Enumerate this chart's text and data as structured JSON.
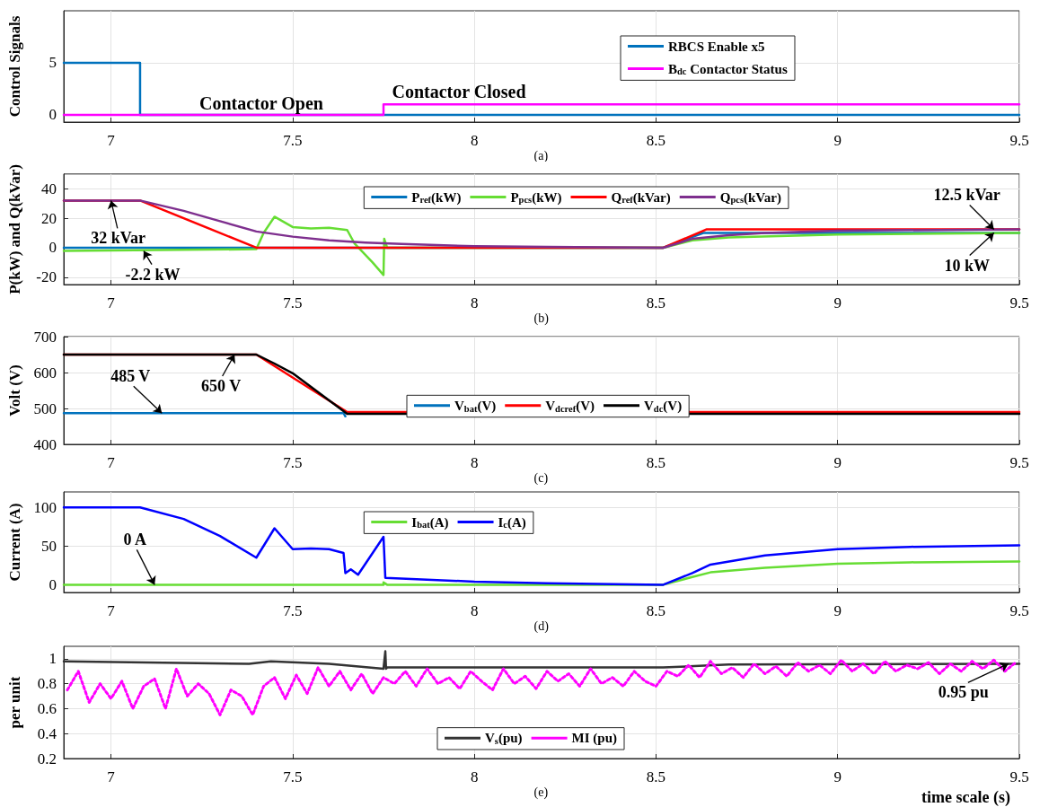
{
  "chart_data": [
    {
      "type": "line",
      "ylabel": "Control Signals",
      "xlim": [
        6.87,
        9.5
      ],
      "xticks": [
        7,
        7.5,
        8,
        8.5,
        9,
        9.5
      ],
      "ylim": [
        -0.7,
        10
      ],
      "yticks": [
        0,
        5
      ],
      "grid": true,
      "legend": "top right",
      "annotations": [
        "Contactor Open",
        "Contactor Closed",
        "(a)"
      ],
      "series": [
        {
          "name": "RBCS Enable x5",
          "color": "#0072bd",
          "x": [
            6.87,
            7.08,
            7.08,
            9.5
          ],
          "values": [
            5,
            5,
            0,
            0
          ]
        },
        {
          "name": "B$_{dc}$ Contactor Status",
          "color": "#ff00ff",
          "x": [
            6.87,
            7.75,
            7.75,
            9.5
          ],
          "values": [
            0,
            0,
            1,
            1
          ]
        }
      ]
    },
    {
      "type": "line",
      "ylabel": "P(kW) and Q(kVar)",
      "xlim": [
        6.87,
        9.5
      ],
      "xticks": [
        7,
        7.5,
        8,
        8.5,
        9,
        9.5
      ],
      "ylim": [
        -25,
        50
      ],
      "yticks": [
        -20,
        0,
        20,
        40
      ],
      "grid": true,
      "legend": "top",
      "annotations": [
        {
          "text": "32 kVar",
          "x": 7.0,
          "y": 32
        },
        {
          "text": "-2.2 kW",
          "x": 7.09,
          "y": -2.2
        },
        {
          "text": "12.5 kVar",
          "x": 9.43,
          "y": 12.5
        },
        {
          "text": "10 kW",
          "x": 9.43,
          "y": 10
        },
        "(b)"
      ],
      "series": [
        {
          "name": "P$_{ref}$(kW)",
          "color": "#0072bd",
          "x": [
            6.87,
            8.52,
            8.63,
            9.5
          ],
          "values": [
            0,
            0,
            10,
            10
          ]
        },
        {
          "name": "P$_{pcs}$(kW)",
          "color": "#66dd33",
          "x": [
            6.87,
            7.4,
            7.42,
            7.45,
            7.5,
            7.55,
            7.6,
            7.65,
            7.67,
            7.72,
            7.75,
            7.752,
            7.76,
            8.0,
            8.52,
            8.6,
            8.7,
            9.0,
            9.5
          ],
          "values": [
            -2.2,
            -1,
            10,
            21,
            14,
            13,
            13.5,
            12,
            3,
            -10,
            -18.5,
            6,
            0,
            0,
            0,
            5,
            7,
            9,
            10
          ]
        },
        {
          "name": "Q$_{ref}$(kVar)",
          "color": "#ff0000",
          "x": [
            6.87,
            7.08,
            7.4,
            8.52,
            8.64,
            9.5
          ],
          "values": [
            32,
            32,
            0,
            0,
            12.5,
            12.5
          ]
        },
        {
          "name": "Q$_{pcs}$(kVar)",
          "color": "#7e2f8e",
          "x": [
            6.87,
            7.08,
            7.2,
            7.3,
            7.4,
            7.5,
            7.6,
            7.7,
            7.8,
            8.0,
            8.2,
            8.52,
            8.6,
            8.7,
            8.8,
            9.0,
            9.5
          ],
          "values": [
            32,
            32,
            25,
            18,
            11,
            7.5,
            5,
            3.5,
            2.5,
            1,
            0.5,
            0,
            6,
            8.5,
            10,
            11.5,
            12.5
          ]
        }
      ]
    },
    {
      "type": "line",
      "ylabel": "Volt (V)",
      "xlim": [
        6.87,
        9.5
      ],
      "xticks": [
        7,
        7.5,
        8,
        8.5,
        9,
        9.5
      ],
      "ylim": [
        400,
        700
      ],
      "yticks": [
        400,
        500,
        600,
        700
      ],
      "grid": true,
      "legend": "center",
      "annotations": [
        {
          "text": "485 V",
          "x": 7.14,
          "y": 487
        },
        {
          "text": "650 V",
          "x": 7.34,
          "y": 650
        },
        "(c)"
      ],
      "series": [
        {
          "name": "V$_{bat}$(V)",
          "color": "#0072bd",
          "x": [
            6.87,
            7.64,
            7.645
          ],
          "values": [
            487,
            487,
            478
          ]
        },
        {
          "name": "V$_{dcref}$(V)",
          "color": "#ff0000",
          "x": [
            6.87,
            7.4,
            7.65,
            9.5
          ],
          "values": [
            650,
            650,
            490,
            490
          ]
        },
        {
          "name": "V$_{dc}$(V)",
          "color": "#000000",
          "x": [
            6.87,
            7.4,
            7.45,
            7.5,
            7.65,
            9.5
          ],
          "values": [
            650,
            650,
            625,
            598,
            485,
            485
          ]
        }
      ]
    },
    {
      "type": "line",
      "ylabel": "Current (A)",
      "xlim": [
        6.87,
        9.5
      ],
      "xticks": [
        7,
        7.5,
        8,
        8.5,
        9,
        9.5
      ],
      "ylim": [
        -10,
        120
      ],
      "yticks": [
        0,
        50,
        100
      ],
      "grid": true,
      "legend": "top",
      "annotations": [
        {
          "text": "0 A",
          "x": 7.12,
          "y": 0
        },
        "(d)"
      ],
      "series": [
        {
          "name": "I$_{bat}$(A)",
          "color": "#66dd33",
          "x": [
            6.87,
            7.75,
            7.75,
            7.76,
            8.0,
            8.52,
            8.6,
            8.65,
            8.8,
            9.0,
            9.2,
            9.5
          ],
          "values": [
            0,
            0,
            3,
            0,
            0,
            0,
            10,
            16,
            22,
            27,
            29,
            30
          ]
        },
        {
          "name": "I$_{c}$(A)",
          "color": "#0000ff",
          "x": [
            6.87,
            7.08,
            7.2,
            7.3,
            7.4,
            7.45,
            7.5,
            7.55,
            7.6,
            7.64,
            7.645,
            7.66,
            7.68,
            7.75,
            7.755,
            8.0,
            8.2,
            8.52,
            8.6,
            8.65,
            8.8,
            9.0,
            9.2,
            9.5
          ],
          "values": [
            100,
            100,
            85,
            63,
            35,
            73,
            46,
            47,
            46,
            41,
            15,
            20,
            13,
            62,
            9,
            4,
            2,
            0,
            15,
            26,
            38,
            46,
            49,
            51
          ]
        }
      ]
    },
    {
      "type": "line",
      "ylabel": "per unit",
      "xlabel": "time scale (s)",
      "xlim": [
        6.87,
        9.5
      ],
      "xticks": [
        7,
        7.5,
        8,
        8.5,
        9,
        9.5
      ],
      "ylim": [
        0.2,
        1.1
      ],
      "yticks": [
        0.2,
        0.4,
        0.6,
        0.8,
        1
      ],
      "grid": true,
      "legend": "bottom",
      "annotations": [
        {
          "text": "0.95 pu",
          "x": 9.47,
          "y": 0.96
        },
        "(e)"
      ],
      "series": [
        {
          "name": "V$_{s}$(pu)",
          "color": "#333333",
          "x": [
            6.87,
            7.38,
            7.44,
            7.6,
            7.75,
            7.755,
            7.757,
            7.76,
            8.52,
            8.7,
            9.5
          ],
          "values": [
            0.98,
            0.96,
            0.98,
            0.96,
            0.92,
            1.06,
            0.92,
            0.93,
            0.93,
            0.955,
            0.96
          ]
        },
        {
          "name": "MI (pu)",
          "color": "#ff00ff",
          "line_style": "dotted",
          "x": [
            6.88,
            6.91,
            6.94,
            6.97,
            7.0,
            7.03,
            7.06,
            7.09,
            7.12,
            7.15,
            7.18,
            7.21,
            7.24,
            7.27,
            7.3,
            7.33,
            7.36,
            7.39,
            7.42,
            7.45,
            7.48,
            7.51,
            7.54,
            7.57,
            7.6,
            7.63,
            7.66,
            7.69,
            7.72,
            7.75,
            7.78,
            7.81,
            7.84,
            7.87,
            7.9,
            7.93,
            7.96,
            7.99,
            8.02,
            8.05,
            8.08,
            8.11,
            8.14,
            8.17,
            8.2,
            8.23,
            8.26,
            8.29,
            8.32,
            8.35,
            8.38,
            8.41,
            8.44,
            8.47,
            8.5,
            8.53,
            8.56,
            8.59,
            8.62,
            8.65,
            8.68,
            8.71,
            8.74,
            8.77,
            8.8,
            8.83,
            8.86,
            8.89,
            8.92,
            8.95,
            8.98,
            9.01,
            9.04,
            9.07,
            9.1,
            9.13,
            9.16,
            9.19,
            9.22,
            9.25,
            9.28,
            9.31,
            9.34,
            9.37,
            9.4,
            9.43,
            9.46,
            9.49
          ],
          "values": [
            0.75,
            0.9,
            0.65,
            0.8,
            0.68,
            0.82,
            0.6,
            0.78,
            0.84,
            0.6,
            0.92,
            0.7,
            0.8,
            0.72,
            0.55,
            0.75,
            0.7,
            0.55,
            0.78,
            0.85,
            0.68,
            0.87,
            0.72,
            0.93,
            0.78,
            0.9,
            0.75,
            0.88,
            0.72,
            0.85,
            0.8,
            0.9,
            0.78,
            0.92,
            0.8,
            0.85,
            0.76,
            0.9,
            0.82,
            0.75,
            0.92,
            0.8,
            0.86,
            0.76,
            0.9,
            0.82,
            0.88,
            0.78,
            0.92,
            0.8,
            0.85,
            0.78,
            0.9,
            0.82,
            0.78,
            0.9,
            0.86,
            0.95,
            0.85,
            0.98,
            0.88,
            0.93,
            0.85,
            0.96,
            0.88,
            0.94,
            0.86,
            0.97,
            0.9,
            0.95,
            0.88,
            0.99,
            0.9,
            0.96,
            0.88,
            0.98,
            0.9,
            0.95,
            0.92,
            0.97,
            0.88,
            0.96,
            0.9,
            0.98,
            0.92,
            0.99,
            0.9,
            0.97
          ]
        }
      ]
    }
  ]
}
